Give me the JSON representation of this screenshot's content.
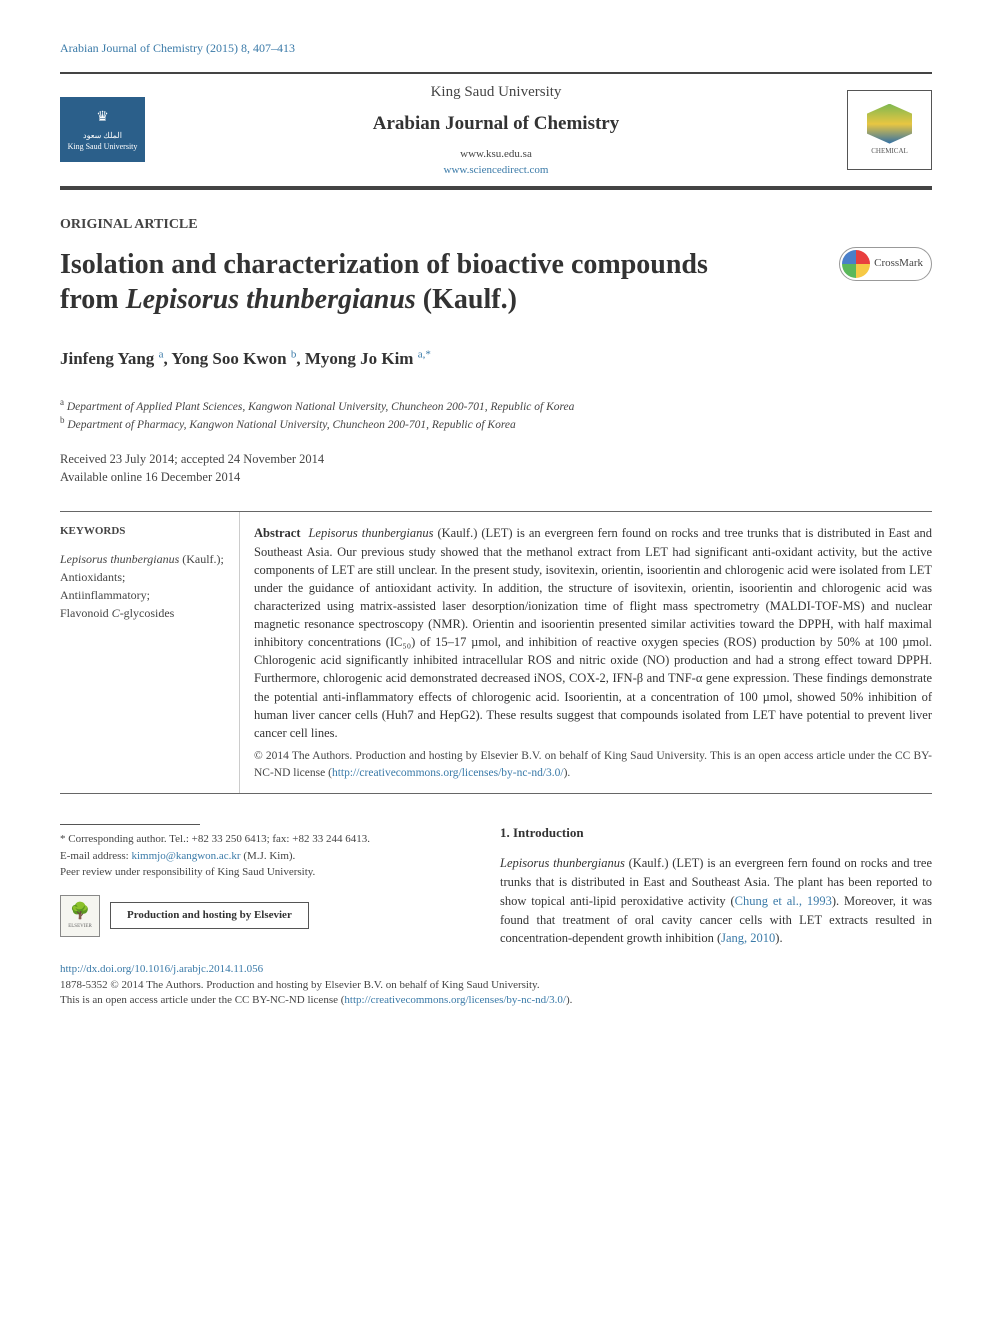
{
  "colors": {
    "link": "#3a7aa8",
    "text": "#333333",
    "muted": "#444444",
    "background": "#ffffff",
    "ksu_logo_bg": "#2b5f8a"
  },
  "typography": {
    "body_fontsize": 13,
    "title_fontsize": 28,
    "journal_fontsize": 19,
    "author_fontsize": 17,
    "small_fontsize": 11
  },
  "header": {
    "citation": "Arabian Journal of Chemistry (2015) 8, 407–413"
  },
  "masthead": {
    "ksu": "King Saud University",
    "journal": "Arabian Journal of Chemistry",
    "url1": "www.ksu.edu.sa",
    "url2": "www.sciencedirect.com",
    "left_logo_text": "الملك سعود",
    "left_logo_sub": "King Saud University",
    "right_logo_top": "CHEMICAL",
    "crossmark": "CrossMark"
  },
  "article": {
    "type": "ORIGINAL ARTICLE",
    "title_plain": "Isolation and characterization of bioactive compounds from ",
    "title_italic": "Lepisorus thunbergianus",
    "title_suffix": " (Kaulf.)"
  },
  "authors": {
    "a1_name": "Jinfeng Yang ",
    "a1_sup": "a",
    "a2_name": ", Yong Soo Kwon ",
    "a2_sup": "b",
    "a3_name": ", Myong Jo Kim ",
    "a3_sup": "a,*"
  },
  "affiliations": {
    "a_sup": "a",
    "a_text": " Department of Applied Plant Sciences, Kangwon National University, Chuncheon 200-701, Republic of Korea",
    "b_sup": "b",
    "b_text": " Department of Pharmacy, Kangwon National University, Chuncheon 200-701, Republic of Korea"
  },
  "dates": {
    "line1": "Received 23 July 2014; accepted 24 November 2014",
    "line2": "Available online 16 December 2014"
  },
  "keywords": {
    "header": "KEYWORDS",
    "k1_italic": "Lepisorus thunbergianus",
    "k1_suffix": " (Kaulf.);",
    "k2": "Antioxidants;",
    "k3": "Antiinflammatory;",
    "k4_prefix": "Flavonoid ",
    "k4_italic": "C",
    "k4_suffix": "-glycosides"
  },
  "abstract": {
    "label": "Abstract",
    "text": "Lepisorus thunbergianus (Kaulf.) (LET) is an evergreen fern found on rocks and tree trunks that is distributed in East and Southeast Asia. Our previous study showed that the methanol extract from LET had significant anti-oxidant activity, but the active components of LET are still unclear. In the present study, isovitexin, orientin, isoorientin and chlorogenic acid were isolated from LET under the guidance of antioxidant activity. In addition, the structure of isovitexin, orientin, isoorientin and chlorogenic acid was characterized using matrix-assisted laser desorption/ionization time of flight mass spectrometry (MALDI-TOF-MS) and nuclear magnetic resonance spectroscopy (NMR). Orientin and isoorientin presented similar activities toward the DPPH, with half maximal inhibitory concentrations (IC₅₀) of 15–17 µmol, and inhibition of reactive oxygen species (ROS) production by 50% at 100 µmol. Chlorogenic acid significantly inhibited intracellular ROS and nitric oxide (NO) production and had a strong effect toward DPPH. Furthermore, chlorogenic acid demonstrated decreased iNOS, COX-2, IFN-β and TNF-α gene expression. These findings demonstrate the potential anti-inflammatory effects of chlorogenic acid. Isoorientin, at a concentration of 100 µmol, showed 50% inhibition of human liver cancer cells (Huh7 and HepG2). These results suggest that compounds isolated from LET have potential to prevent liver cancer cell lines.",
    "copyright_prefix": "© 2014 The Authors. Production and hosting by Elsevier B.V. on behalf of King Saud University. This is an open access article under the CC BY-NC-ND license (",
    "copyright_link": "http://creativecommons.org/licenses/by-nc-nd/3.0/",
    "copyright_suffix": ")."
  },
  "corresponding": {
    "star": "*",
    "line1": " Corresponding author. Tel.: +82 33 250 6413; fax: +82 33 244 6413.",
    "email_label": "E-mail address: ",
    "email": "kimmjo@kangwon.ac.kr",
    "email_suffix": " (M.J. Kim).",
    "peer": "Peer review under responsibility of King Saud University."
  },
  "elsevier": {
    "logo": "ELSEVIER",
    "hosting": "Production and hosting by Elsevier"
  },
  "intro": {
    "heading": "1. Introduction",
    "p1_italic": "Lepisorus thunbergianus",
    "p1_text": " (Kaulf.) (LET) is an evergreen fern found on rocks and tree trunks that is distributed in East and Southeast Asia. The plant has been reported to show topical anti-lipid peroxidative activity (",
    "p1_cite1": "Chung et al., 1993",
    "p1_mid": "). Moreover, it was found that treatment of oral cavity cancer cells with LET extracts resulted in concentration-dependent growth inhibition (",
    "p1_cite2": "Jang, 2010",
    "p1_end": ")."
  },
  "footer": {
    "doi": "http://dx.doi.org/10.1016/j.arabjc.2014.11.056",
    "line2": "1878-5352 © 2014 The Authors. Production and hosting by Elsevier B.V. on behalf of King Saud University.",
    "line3_prefix": "This is an open access article under the CC BY-NC-ND license (",
    "line3_link": "http://creativecommons.org/licenses/by-nc-nd/3.0/",
    "line3_suffix": ")."
  }
}
